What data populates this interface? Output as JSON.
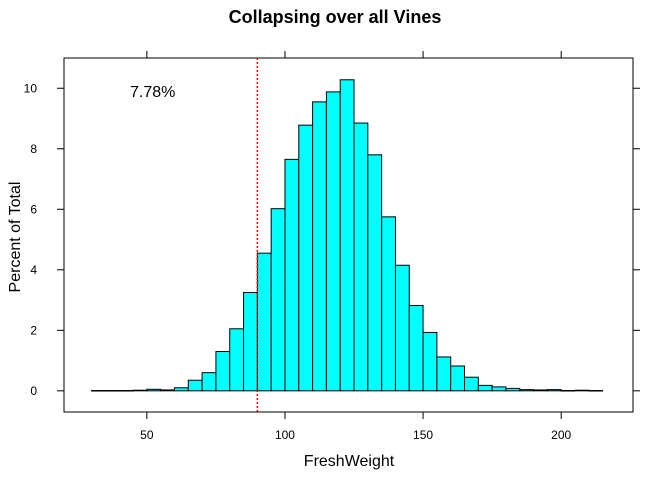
{
  "chart_data": {
    "type": "bar",
    "title": "Collapsing over all Vines",
    "xlabel": "FreshWeight",
    "ylabel": "Percent of Total",
    "annotation": "7.78%",
    "reference_line": {
      "x": 90,
      "color": "#ff0000",
      "style": "dotted"
    },
    "xlim": [
      20,
      226
    ],
    "ylim": [
      -0.7,
      11
    ],
    "x_ticks": [
      50,
      100,
      150,
      200
    ],
    "y_ticks": [
      0,
      2,
      4,
      6,
      8,
      10
    ],
    "bin_width": 5,
    "bin_starts": [
      30,
      35,
      40,
      45,
      50,
      55,
      60,
      65,
      70,
      75,
      80,
      85,
      90,
      95,
      100,
      105,
      110,
      115,
      120,
      125,
      130,
      135,
      140,
      145,
      150,
      155,
      160,
      165,
      170,
      175,
      180,
      185,
      190,
      195,
      200,
      205,
      210
    ],
    "values": [
      0.01,
      0.01,
      0.01,
      0.02,
      0.05,
      0.03,
      0.1,
      0.35,
      0.6,
      1.3,
      2.05,
      3.25,
      4.55,
      6.02,
      7.65,
      8.78,
      9.55,
      9.88,
      10.28,
      8.85,
      7.8,
      5.75,
      4.15,
      2.82,
      1.93,
      1.12,
      0.82,
      0.45,
      0.18,
      0.13,
      0.08,
      0.04,
      0.03,
      0.04,
      0.01,
      0.02,
      0.01
    ],
    "bar_color": "#00ffff",
    "grid": false
  }
}
